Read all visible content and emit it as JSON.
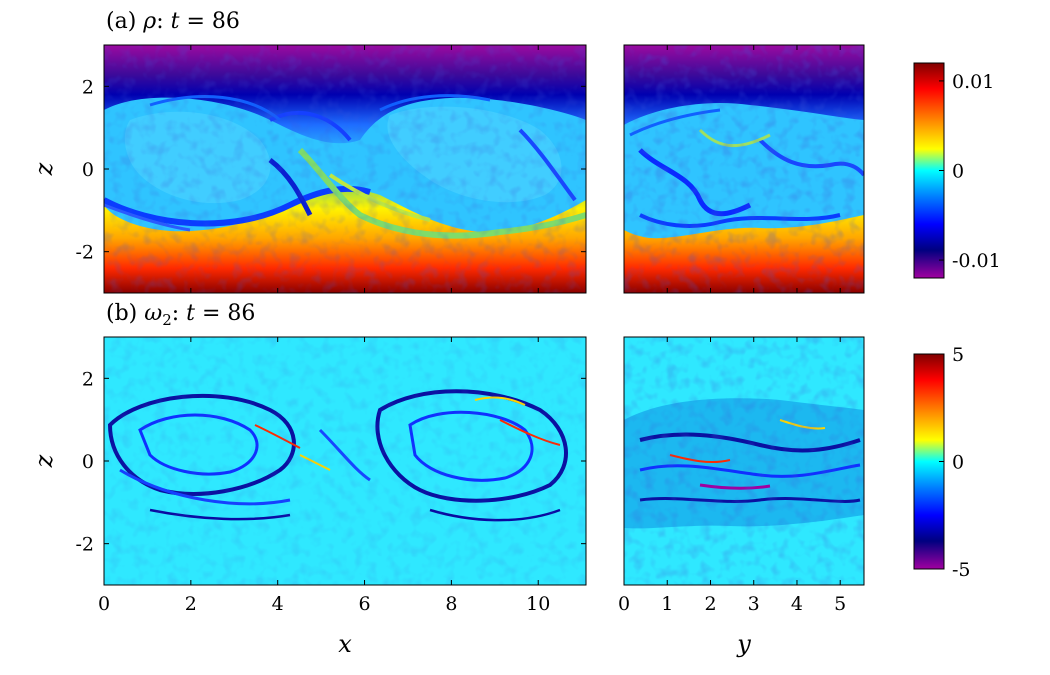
{
  "chart_data": [
    {
      "type": "heatmap",
      "panel": "(a)",
      "field": "ρ",
      "time_label": "t",
      "time_value": "86",
      "colormap": [
        "#800000",
        "#ff0000",
        "#ffff00",
        "#00ffff",
        "#0000ff",
        "#000080",
        "#a000a0"
      ],
      "subplots": [
        {
          "xlabel": "",
          "ylabel": "z",
          "xlim": [
            0,
            11.1
          ],
          "ylim": [
            -3,
            3
          ],
          "xticks": [
            "0",
            "2",
            "4",
            "6",
            "8",
            "10"
          ],
          "yticks": [
            "2",
            "0",
            "-2"
          ]
        },
        {
          "xlabel": "",
          "ylabel": "",
          "xlim": [
            0,
            5.55
          ],
          "ylim": [
            -3,
            3
          ],
          "xticks": [
            "0",
            "1",
            "2",
            "3",
            "4",
            "5"
          ],
          "yticks": []
        }
      ],
      "colorbar": {
        "range": [
          -0.012,
          0.012
        ],
        "ticks": [
          "0.01",
          "0",
          "-0.01"
        ]
      }
    },
    {
      "type": "heatmap",
      "panel": "(b)",
      "field": "ω",
      "field_sub": "2",
      "time_label": "t",
      "time_value": "86",
      "colormap": [
        "#800000",
        "#ff0000",
        "#ffff00",
        "#00ffff",
        "#0000ff",
        "#000080",
        "#a000a0"
      ],
      "subplots": [
        {
          "xlabel": "x",
          "ylabel": "z",
          "xlim": [
            0,
            11.1
          ],
          "ylim": [
            -3,
            3
          ],
          "xticks": [
            "0",
            "2",
            "4",
            "6",
            "8",
            "10"
          ],
          "yticks": [
            "2",
            "0",
            "-2"
          ]
        },
        {
          "xlabel": "y",
          "ylabel": "",
          "xlim": [
            0,
            5.55
          ],
          "ylim": [
            -3,
            3
          ],
          "xticks": [
            "0",
            "1",
            "2",
            "3",
            "4",
            "5"
          ],
          "yticks": []
        }
      ],
      "colorbar": {
        "range": [
          -5,
          5
        ],
        "ticks": [
          "5",
          "0",
          "-5"
        ]
      }
    }
  ]
}
